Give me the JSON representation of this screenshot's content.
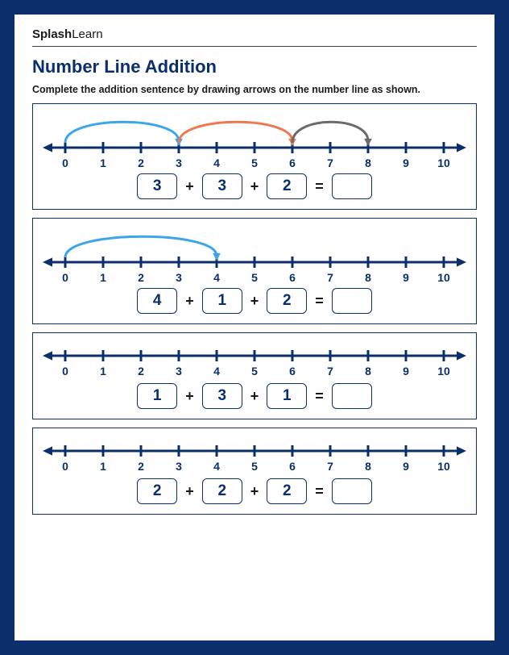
{
  "brand": {
    "bold": "Splash",
    "light": "Learn"
  },
  "title": "Number Line Addition",
  "instructions": "Complete the addition sentence by drawing arrows on the number line as shown.",
  "colors": {
    "primary": "#0a2f6b",
    "border": "#0a2f6b",
    "text": "#1a1a1a"
  },
  "numberline": {
    "min": 0,
    "max": 10,
    "tick_step": 1,
    "line_width": 3,
    "tick_height": 7,
    "label_fontsize": 14,
    "arrow_head_size": 8
  },
  "arcs_style": {
    "stroke_width": 3,
    "arrow_head_size": 7
  },
  "problems": [
    {
      "arcs": [
        {
          "from": 0,
          "to": 3,
          "color": "#3da5e8"
        },
        {
          "from": 3,
          "to": 6,
          "color": "#ec7a50"
        },
        {
          "from": 6,
          "to": 8,
          "color": "#6b6b6b"
        }
      ],
      "operands": [
        "3",
        "3",
        "2"
      ],
      "answer": ""
    },
    {
      "arcs": [
        {
          "from": 0,
          "to": 4,
          "color": "#3da5e8"
        }
      ],
      "operands": [
        "4",
        "1",
        "2"
      ],
      "answer": ""
    },
    {
      "arcs": [],
      "operands": [
        "1",
        "3",
        "1"
      ],
      "answer": ""
    },
    {
      "arcs": [],
      "operands": [
        "2",
        "2",
        "2"
      ],
      "answer": ""
    }
  ]
}
